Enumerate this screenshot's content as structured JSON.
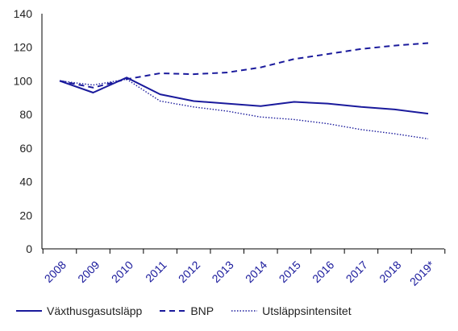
{
  "chart_data": {
    "type": "line",
    "title": "",
    "xlabel": "",
    "ylabel": "",
    "categories": [
      "2008",
      "2009",
      "2010",
      "2011",
      "2012",
      "2013",
      "2014",
      "2015",
      "2016",
      "2017",
      "2018",
      "2019*"
    ],
    "ylim": [
      0,
      140
    ],
    "yticks": [
      0,
      20,
      40,
      60,
      80,
      100,
      120,
      140
    ],
    "grid": false,
    "legend_position": "bottom",
    "line_color": "#1a1a9c",
    "series": [
      {
        "name": "Växthusgasutsläpp",
        "style": "solid",
        "values": [
          100,
          93,
          102,
          92,
          88,
          86.5,
          85,
          87.5,
          86.5,
          84.5,
          83,
          80.5
        ]
      },
      {
        "name": "BNP",
        "style": "dashed",
        "values": [
          100,
          96,
          101,
          104.5,
          104,
          105,
          108,
          113,
          116,
          119,
          121,
          122.5
        ]
      },
      {
        "name": "Utsläppsintensitet",
        "style": "dotted",
        "values": [
          100,
          97.5,
          101,
          88,
          84.5,
          82,
          78.5,
          77,
          74.5,
          71,
          68.5,
          65.5
        ]
      }
    ]
  }
}
